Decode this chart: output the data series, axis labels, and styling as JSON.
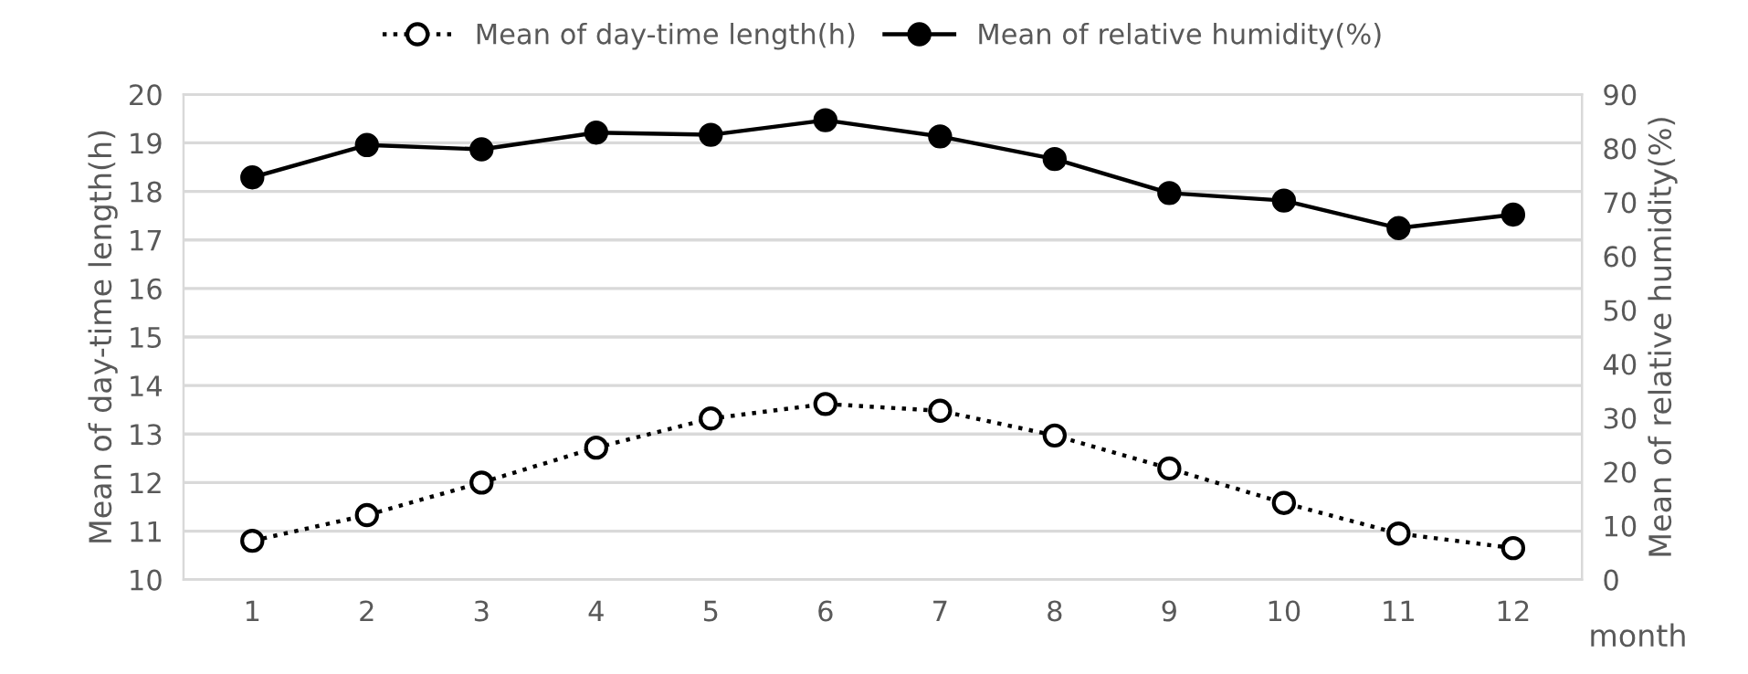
{
  "chart_data": {
    "type": "line",
    "xlabel": "month",
    "ylabel": "Mean of day-time length(h)",
    "y2label": "Mean of relative humidity(%)",
    "categories": [
      "1",
      "2",
      "3",
      "4",
      "5",
      "6",
      "7",
      "8",
      "9",
      "10",
      "11",
      "12"
    ],
    "series": [
      {
        "name": "Mean of day-time length(h)",
        "color": "#000000",
        "marker": "circle",
        "line_style": "dotted",
        "values": [
          10.8,
          11.33,
          12.0,
          12.72,
          13.32,
          13.62,
          13.48,
          12.97,
          12.29,
          11.58,
          10.95,
          10.65
        ]
      },
      {
        "name": "Mean of relative humidity(%)",
        "color": "#000000",
        "marker": "circle",
        "line_style": "solid",
        "axis": "y2",
        "values": [
          74.6,
          80.6,
          79.8,
          82.9,
          82.5,
          85.2,
          82.2,
          78.0,
          71.7,
          70.3,
          65.2,
          67.7
        ]
      }
    ],
    "ylim": [
      10,
      20
    ],
    "yticks": [
      10,
      11,
      12,
      13,
      14,
      15,
      16,
      17,
      18,
      19,
      20
    ],
    "y2lim": [
      0,
      90
    ],
    "y2ticks": [
      0,
      10,
      20,
      30,
      40,
      50,
      60,
      70,
      80,
      90
    ],
    "grid": "y",
    "legend": "top"
  }
}
